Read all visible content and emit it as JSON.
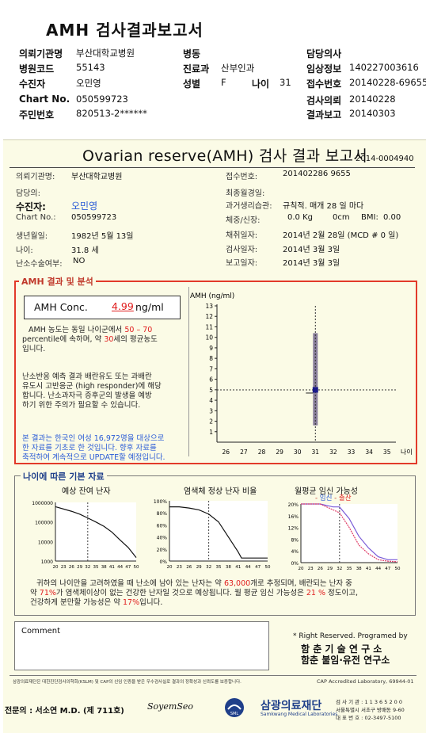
{
  "header": {
    "title": "AMH 검사결과보고서",
    "rows": [
      {
        "label": "의뢰기관명",
        "value": "부산대학교병원"
      },
      {
        "label": "병원코드",
        "value": "55143"
      },
      {
        "label": "수진자",
        "value": "오민영"
      },
      {
        "label": "Chart No.",
        "value": "050599723"
      },
      {
        "label": "주민번호",
        "value": "820513-2******"
      }
    ],
    "mid": {
      "ward_label": "병동",
      "dept_label": "진료과",
      "dept_value": "산부인과",
      "sex_label": "성별",
      "sex_value": "F",
      "age_label": "나이",
      "age_value": "31"
    },
    "right": [
      {
        "label": "담당의사",
        "value": ""
      },
      {
        "label": "임상정보",
        "value": "140227003616"
      },
      {
        "label": "접수번호",
        "value": "20140228-69655"
      },
      {
        "label": "",
        "value": ""
      },
      {
        "label": "검사의뢰",
        "value": "20140228"
      },
      {
        "label": "결과보고",
        "value": "20140303"
      }
    ]
  },
  "report": {
    "title": "Ovarian reserve(AMH) 검사 결과 보고서",
    "number": "2014-0004940",
    "left": {
      "inst_label": "의뢰기관명:",
      "inst_value": "부산대학교병원",
      "doctor_label": "담당의:",
      "patient_label": "수진자:",
      "patient_value": "오민영",
      "chart_label": "Chart No.:",
      "chart_value": "050599723",
      "birth_label": "생년월일:",
      "birth_value": "1982년 5월 13일",
      "age_label": "나이:",
      "age_value": "31.8 세",
      "surgery_label": "난소수술여부:",
      "surgery_value": "NO"
    },
    "right": {
      "accept_label": "접수번호:",
      "accept_value": "201402286 9655",
      "lmp_label": "최종월경일:",
      "lmp_value": "",
      "cycle_label": "과거생리습관:",
      "cycle_value": "규칙적. 매개  28 일 마다",
      "body_label": "체중/신장:",
      "weight": "0.0 Kg",
      "height": "0cm",
      "bmi_label": "BMI:",
      "bmi_value": "0.00",
      "collect_label": "채취일자:",
      "collect_value": "2014년 2월 28일  (MCD #  0 일)",
      "test_label": "검사일자:",
      "test_value": "2014년 3월 3일",
      "report_label": "보고일자:",
      "report_value": "2014년 3월 3일"
    },
    "result_section": "AMH 결과 및 분석",
    "amh_label": "AMH Conc.",
    "amh_value": "4.99",
    "amh_unit": "ng/ml",
    "desc1_a": "AMH 농도는 동일 나이군에서",
    "desc1_range": "50 –  70",
    "desc1_b": "percentile에 속하며, 약",
    "desc1_age": "30",
    "desc1_c": "세의 평균농도",
    "desc1_d": "입니다.",
    "desc2": [
      "난소반응 예측 결과 배란유도 또는 과배란",
      "유도시 고반응군 (high responder)에 해당",
      "합니다. 난소과자극 증후군의 발생을 예방",
      "하기 위한 주의가 필요할 수 있습니다."
    ],
    "desc3": [
      "본 결과는 한국인 여성 16,972명을 대상으로",
      "한 자료를 기초로 한 것입니다. 향후 자료를",
      "축적하여 계속적으로 UPDATE할 예정입니다."
    ],
    "age_section": "나이에 따른 기본 자료",
    "graph1_title": "예상 잔여 난자",
    "graph2_title": "염색체 정상 난자 비율",
    "graph3_title": "월평균 임신 가능성",
    "graph3_legend_a": "임신",
    "graph3_legend_b": "출산",
    "age_desc1_a": "귀하의 나이만을 고려하였을 때 난소에 남아 있는 난자는 약",
    "age_desc1_count": "63,000",
    "age_desc1_b": "개로 추정되며, 배란되는 난자 중",
    "age_desc2_a": "약",
    "age_desc2_pct": "71%",
    "age_desc2_b": "가 염색체이상이 없는 건강한 난자일 것으로 예상됩니다. 월 평균 임신 가능성은",
    "age_desc2_pct2": "21 %",
    "age_desc2_c": "정도이고,",
    "age_desc3_a": "건강하게 분만할 가능성은 약",
    "age_desc3_pct": "17%",
    "age_desc3_b": "입니다.",
    "comment_label": "Comment",
    "rights": "* Right Reserved. Programed by",
    "lab1": "함 춘  기 술  연 구 소",
    "lab2": "함춘 불임·유전 연구소",
    "footnote": "삼광의료재단은 대한진단검사의학회(KSLM) 및 CAP의 신임 인증을 받은 우수검사실로 결과의 정확성과 신뢰도를 보증합니다.",
    "cap": "CAP Accredited Laboratory, 69944-01",
    "signer": "전문의 : 서소연 M.D. (제 711호)",
    "signature": "SoyemSeo",
    "org": "삼광의료재단",
    "org_en": "Samkwang Medical Laboratories",
    "contact1": "검 사 기 관 : 1 1 3 6 5 2 0 0",
    "contact2": "서울특별시 서초구 방배동 9-60",
    "contact3": "대 표 번 호 : 02-3497-5100"
  },
  "chart_data": [
    {
      "type": "scatter",
      "title": "",
      "ylabel": "AMH (ng/ml)",
      "xlabel": "나이",
      "x_ticks": [
        26,
        27,
        28,
        29,
        30,
        31,
        32,
        33,
        34,
        35
      ],
      "ylim": [
        0,
        13
      ],
      "y_ticks": [
        1,
        2,
        3,
        4,
        5,
        6,
        7,
        8,
        9,
        10,
        11,
        12,
        13
      ],
      "range_bar": {
        "x": 31,
        "low": 1.6,
        "high": 10.4
      },
      "point": {
        "x": 31,
        "y": 4.99
      },
      "reference_lines": {
        "x": 31,
        "y": 4.99
      }
    },
    {
      "type": "line",
      "title": "예상 잔여 난자",
      "x_ticks": [
        20,
        23,
        26,
        29,
        32,
        35,
        38,
        41,
        44,
        47,
        50
      ],
      "y_ticks": [
        "1000000",
        "100000",
        "10000",
        "1000"
      ],
      "x": [
        20,
        26,
        29,
        32,
        35,
        38,
        41,
        44,
        47,
        50
      ],
      "y": [
        600000,
        350000,
        250000,
        160000,
        100000,
        60000,
        30000,
        12000,
        5000,
        1500
      ],
      "marker_x": 32
    },
    {
      "type": "line",
      "title": "염색체 정상 난자 비율",
      "x_ticks": [
        20,
        23,
        26,
        29,
        32,
        35,
        38,
        41,
        44,
        47,
        50
      ],
      "y_ticks": [
        "100%",
        "80%",
        "60%",
        "40%",
        "20%",
        "0%"
      ],
      "x": [
        20,
        23,
        26,
        29,
        32,
        35,
        38,
        41,
        42,
        44,
        47,
        50
      ],
      "y": [
        90,
        90,
        88,
        85,
        78,
        65,
        40,
        15,
        5,
        5,
        5,
        5
      ],
      "marker_x": 32
    },
    {
      "type": "line",
      "title": "월평균 임신 가능성",
      "x_ticks": [
        20,
        23,
        26,
        29,
        32,
        35,
        38,
        41,
        44,
        47,
        50
      ],
      "y_ticks": [
        "20%",
        "16%",
        "12%",
        "8%",
        "4%",
        "0%"
      ],
      "series": [
        {
          "name": "임신",
          "x": [
            20,
            26,
            30,
            32,
            35,
            38,
            41,
            44,
            47,
            50
          ],
          "y": [
            20,
            20,
            19,
            19,
            15,
            9,
            5,
            2,
            1,
            1
          ]
        },
        {
          "name": "출산",
          "x": [
            20,
            26,
            30,
            32,
            35,
            38,
            41,
            44,
            47,
            50
          ],
          "y": [
            20,
            20,
            18,
            17,
            12,
            6,
            3,
            1,
            0.5,
            0.3
          ]
        }
      ],
      "marker_x": 32
    }
  ]
}
